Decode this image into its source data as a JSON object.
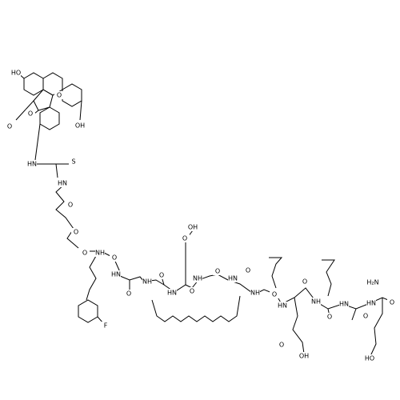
{
  "labels": [
    "HO",
    "O",
    "O",
    "O",
    "OH",
    "HN",
    "S",
    "HN",
    "O",
    "O",
    "O",
    "NH",
    "O",
    "HN",
    "F",
    "O",
    "NH",
    "O",
    "HN",
    "O",
    "OH",
    "O",
    "NH",
    "O",
    "HN",
    "O",
    "NH",
    "O",
    "HN",
    "O",
    "OH",
    "O",
    "NH",
    "O",
    "HN",
    "O",
    "HN",
    "H₂N",
    "O",
    "HO"
  ]
}
